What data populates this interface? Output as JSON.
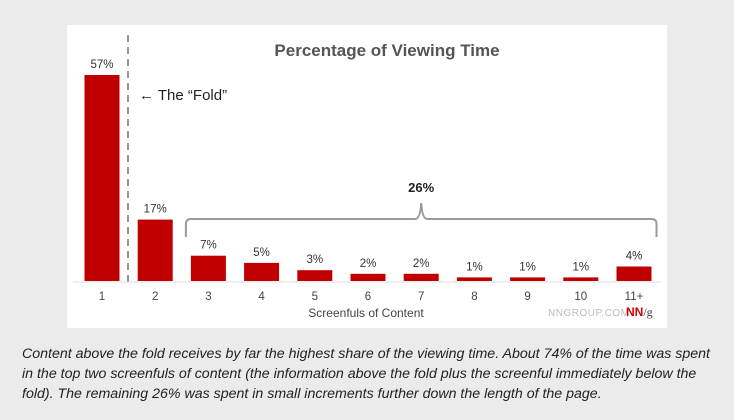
{
  "chart_data": {
    "type": "bar",
    "title": "Percentage of Viewing Time",
    "xlabel": "Screenfuls of Content",
    "ylabel": "",
    "ylim": [
      0,
      60
    ],
    "categories": [
      "1",
      "2",
      "3",
      "4",
      "5",
      "6",
      "7",
      "8",
      "9",
      "10",
      "11+"
    ],
    "values": [
      57,
      17,
      7,
      5,
      3,
      2,
      2,
      1,
      1,
      1,
      4
    ],
    "value_labels": [
      "57%",
      "17%",
      "7%",
      "5%",
      "3%",
      "2%",
      "2%",
      "1%",
      "1%",
      "1%",
      "4%"
    ],
    "grid": false,
    "legend": "none",
    "colors": {
      "bar": "#c00000",
      "bracket": "#9a9a9a",
      "fold_line": "#707070"
    },
    "annotations": {
      "fold_label": "← The “Fold”",
      "bracket_label": "26%",
      "bracket_from_category": "3",
      "bracket_to_category": "11+"
    },
    "branding": {
      "site": "NNGROUP.COM",
      "logo_main": "NN",
      "logo_slash": "/g"
    }
  },
  "caption": "Content above the fold receives by far the highest share of the viewing time. About 74% of the time was spent in the top two screenfuls of content (the information above the fold plus the screenful immediately below the fold). The remaining 26% was spent in small increments further down the length of the page."
}
